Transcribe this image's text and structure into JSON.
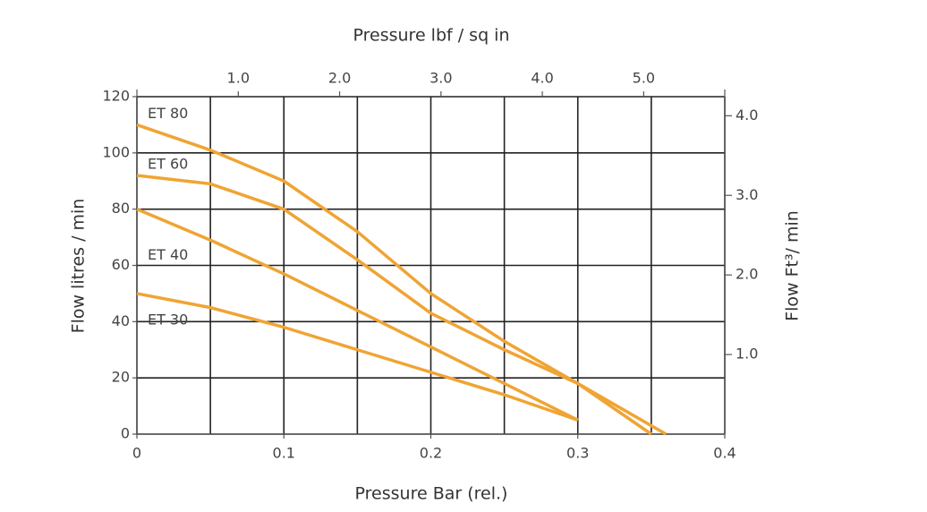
{
  "chart_data": {
    "type": "line",
    "x_label": "Pressure Bar (rel.)",
    "x2_label": "Pressure lbf / sq in",
    "y_label": "Flow litres / min",
    "y2_label": "Flow Ft³/ min",
    "xlim": [
      0,
      0.4
    ],
    "xticks": [
      0,
      0.1,
      0.2,
      0.3,
      0.4
    ],
    "xminor": [
      0.05,
      0.15,
      0.25,
      0.35
    ],
    "x2lim": [
      0,
      5.8
    ],
    "x2ticks": [
      {
        "value": 1,
        "label": "1.0"
      },
      {
        "value": 2,
        "label": "2.0"
      },
      {
        "value": 3,
        "label": "3.0"
      },
      {
        "value": 4,
        "label": "4.0"
      },
      {
        "value": 5,
        "label": "5.0"
      }
    ],
    "ylim": [
      0,
      120
    ],
    "yticks": [
      0,
      20,
      40,
      60,
      80,
      100,
      120
    ],
    "y2lim": [
      0,
      4.24
    ],
    "y2ticks": [
      {
        "value": 1,
        "label": "1.0"
      },
      {
        "value": 2,
        "label": "2.0"
      },
      {
        "value": 3,
        "label": "3.0"
      },
      {
        "value": 4,
        "label": "4.0"
      }
    ],
    "grid": true,
    "series": [
      {
        "name": "ET 80",
        "color": "#f0a434",
        "x": [
          0,
          0.05,
          0.1,
          0.15,
          0.2,
          0.25,
          0.3,
          0.36
        ],
        "values": [
          110,
          101,
          90,
          72,
          50,
          33,
          18,
          0
        ]
      },
      {
        "name": "ET 60",
        "color": "#f0a434",
        "x": [
          0,
          0.05,
          0.1,
          0.15,
          0.2,
          0.25,
          0.3,
          0.35
        ],
        "values": [
          92,
          89,
          80,
          62,
          43,
          30,
          18,
          0
        ]
      },
      {
        "name": "ET 40",
        "color": "#f0a434",
        "x": [
          0,
          0.05,
          0.1,
          0.15,
          0.2,
          0.25,
          0.3
        ],
        "values": [
          80,
          69,
          57,
          44,
          31,
          18,
          5
        ]
      },
      {
        "name": "ET 30",
        "color": "#f0a434",
        "x": [
          0,
          0.05,
          0.1,
          0.15,
          0.2,
          0.25,
          0.3
        ],
        "values": [
          50,
          45,
          38,
          30,
          22,
          14,
          5
        ]
      }
    ]
  }
}
